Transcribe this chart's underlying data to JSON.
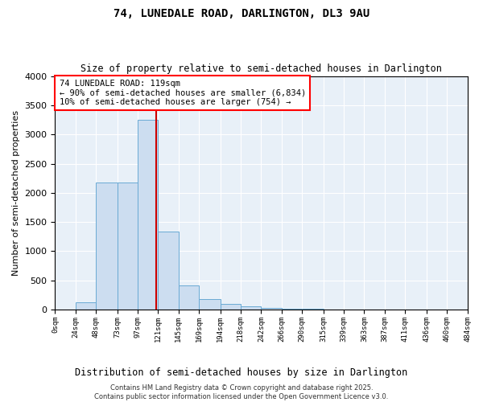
{
  "title": "74, LUNEDALE ROAD, DARLINGTON, DL3 9AU",
  "subtitle": "Size of property relative to semi-detached houses in Darlington",
  "xlabel": "Distribution of semi-detached houses by size in Darlington",
  "ylabel": "Number of semi-detached properties",
  "annotation_line1": "74 LUNEDALE ROAD: 119sqm",
  "annotation_line2": "← 90% of semi-detached houses are smaller (6,834)",
  "annotation_line3": "10% of semi-detached houses are larger (754) →",
  "red_line_x": 119,
  "bin_edges": [
    0,
    24,
    48,
    73,
    97,
    121,
    145,
    169,
    194,
    218,
    242,
    266,
    290,
    315,
    339,
    363,
    387,
    411,
    436,
    460,
    484
  ],
  "bar_heights": [
    0,
    120,
    2170,
    2170,
    3250,
    1340,
    420,
    175,
    100,
    50,
    30,
    15,
    10,
    5,
    5,
    3,
    2,
    1,
    1,
    0
  ],
  "bar_color": "#ccddf0",
  "bar_edge_color": "#6aaad4",
  "red_line_color": "#cc0000",
  "ylim": [
    0,
    4000
  ],
  "yticks": [
    0,
    500,
    1000,
    1500,
    2000,
    2500,
    3000,
    3500,
    4000
  ],
  "background_color": "#e8f0f8",
  "grid_color": "#ffffff",
  "footer_line1": "Contains HM Land Registry data © Crown copyright and database right 2025.",
  "footer_line2": "Contains public sector information licensed under the Open Government Licence v3.0."
}
